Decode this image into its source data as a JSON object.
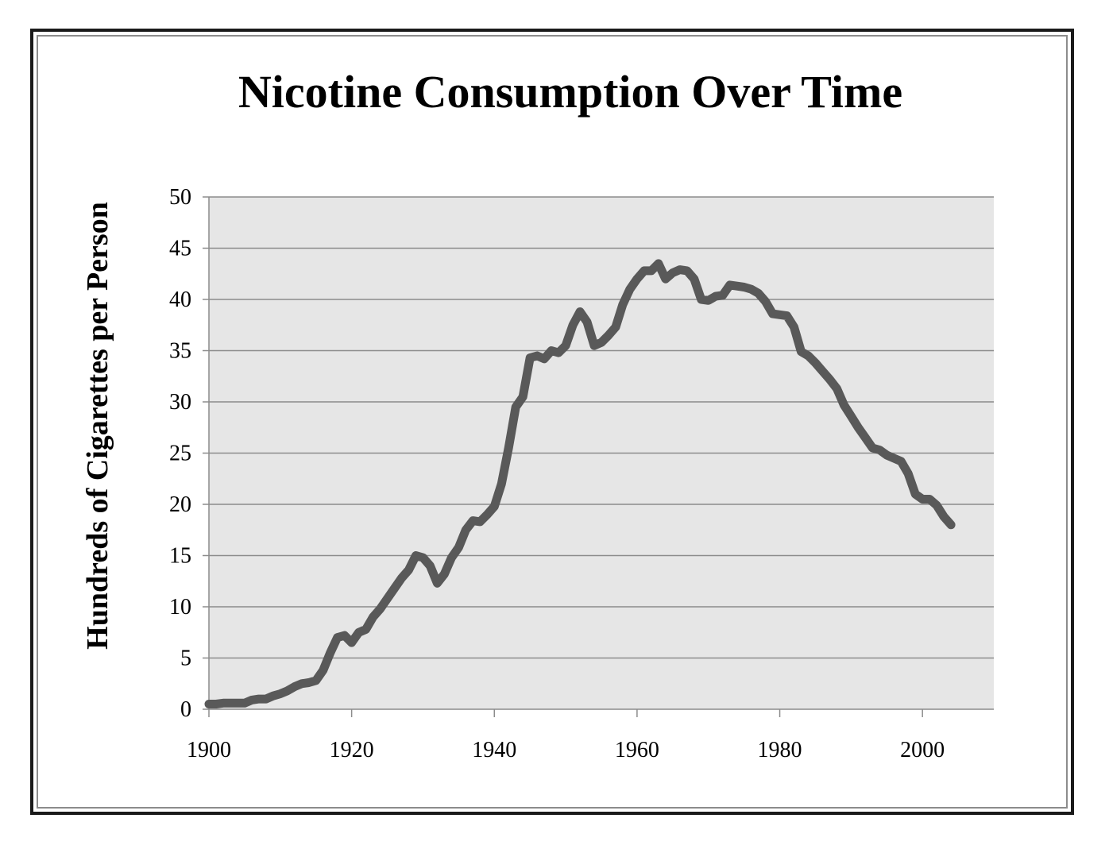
{
  "chart_data": {
    "type": "line",
    "title": "Nicotine Consumption Over Time",
    "xlabel": "",
    "ylabel": "Hundreds of Cigarettes per Person",
    "xlim": [
      1900,
      2010
    ],
    "ylim": [
      0,
      50
    ],
    "xticks": [
      1900,
      1920,
      1940,
      1960,
      1980,
      2000
    ],
    "yticks": [
      0,
      5,
      10,
      15,
      20,
      25,
      30,
      35,
      40,
      45,
      50
    ],
    "grid": true,
    "legend": "none",
    "colors": {
      "line": "#595959",
      "plot_background": "#e6e6e6",
      "grid": "#8c8c8c",
      "axis": "#8c8c8c"
    },
    "series": [
      {
        "x": [
          1900,
          1901,
          1902,
          1903,
          1904,
          1905,
          1906,
          1907,
          1908,
          1909,
          1910,
          1911,
          1912,
          1913,
          1914,
          1915,
          1916,
          1917,
          1918,
          1919,
          1920,
          1921,
          1922,
          1923,
          1924,
          1925,
          1926,
          1927,
          1928,
          1929,
          1930,
          1931,
          1932,
          1933,
          1934,
          1935,
          1936,
          1937,
          1938,
          1939,
          1940,
          1941,
          1942,
          1943,
          1944,
          1945,
          1946,
          1947,
          1948,
          1949,
          1950,
          1951,
          1952,
          1953,
          1954,
          1955,
          1956,
          1957,
          1958,
          1959,
          1960,
          1961,
          1962,
          1963,
          1964,
          1965,
          1966,
          1967,
          1968,
          1969,
          1970,
          1971,
          1972,
          1973,
          1974,
          1975,
          1976,
          1977,
          1978,
          1979,
          1980,
          1981,
          1982,
          1983,
          1984,
          1985,
          1986,
          1987,
          1988,
          1989,
          1990,
          1991,
          1992,
          1993,
          1994,
          1995,
          1996,
          1997,
          1998,
          1999,
          2000,
          2001,
          2002,
          2003,
          2004
        ],
        "values": [
          0.5,
          0.5,
          0.6,
          0.6,
          0.6,
          0.6,
          0.9,
          1.0,
          1.0,
          1.3,
          1.5,
          1.8,
          2.2,
          2.5,
          2.6,
          2.8,
          3.8,
          5.5,
          7.0,
          7.2,
          6.5,
          7.5,
          7.8,
          9.0,
          9.8,
          10.8,
          11.8,
          12.8,
          13.6,
          15.0,
          14.8,
          14.0,
          12.3,
          13.2,
          14.8,
          15.8,
          17.5,
          18.4,
          18.3,
          19.0,
          19.8,
          22.0,
          25.5,
          29.5,
          30.5,
          34.3,
          34.5,
          34.2,
          35.0,
          34.8,
          35.5,
          37.5,
          38.8,
          37.8,
          35.5,
          35.8,
          36.5,
          37.3,
          39.5,
          41.0,
          42.0,
          42.8,
          42.8,
          43.5,
          42.0,
          42.6,
          42.9,
          42.8,
          42.0,
          40.0,
          39.9,
          40.3,
          40.4,
          41.4,
          41.3,
          41.2,
          41.0,
          40.6,
          39.8,
          38.6,
          38.5,
          38.4,
          37.3,
          34.9,
          34.5,
          33.8,
          33.0,
          32.2,
          31.3,
          29.7,
          28.6,
          27.5,
          26.5,
          25.5,
          25.3,
          24.8,
          24.5,
          24.2,
          23.0,
          21.0,
          20.5,
          20.5,
          19.9,
          18.8,
          18.0
        ]
      }
    ]
  }
}
